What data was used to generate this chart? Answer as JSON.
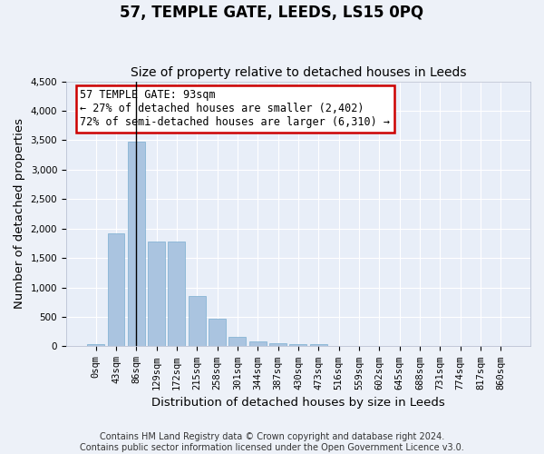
{
  "title": "57, TEMPLE GATE, LEEDS, LS15 0PQ",
  "subtitle": "Size of property relative to detached houses in Leeds",
  "xlabel": "Distribution of detached houses by size in Leeds",
  "ylabel": "Number of detached properties",
  "bin_labels": [
    "0sqm",
    "43sqm",
    "86sqm",
    "129sqm",
    "172sqm",
    "215sqm",
    "258sqm",
    "301sqm",
    "344sqm",
    "387sqm",
    "430sqm",
    "473sqm",
    "516sqm",
    "559sqm",
    "602sqm",
    "645sqm",
    "688sqm",
    "731sqm",
    "774sqm",
    "817sqm",
    "860sqm"
  ],
  "bar_values": [
    40,
    1920,
    3480,
    1780,
    1780,
    860,
    465,
    160,
    90,
    50,
    45,
    40,
    0,
    0,
    0,
    0,
    0,
    0,
    0,
    0,
    0
  ],
  "bar_color": "#aac4e0",
  "bar_edge_color": "#7aaed0",
  "background_color": "#e8eef8",
  "grid_color": "#ffffff",
  "ylim": [
    0,
    4500
  ],
  "yticks": [
    0,
    500,
    1000,
    1500,
    2000,
    2500,
    3000,
    3500,
    4000,
    4500
  ],
  "property_line_x": 2,
  "annotation_title": "57 TEMPLE GATE: 93sqm",
  "annotation_line1": "← 27% of detached houses are smaller (2,402)",
  "annotation_line2": "72% of semi-detached houses are larger (6,310) →",
  "annotation_box_color": "#ffffff",
  "annotation_box_edge_color": "#cc0000",
  "footer_line1": "Contains HM Land Registry data © Crown copyright and database right 2024.",
  "footer_line2": "Contains public sector information licensed under the Open Government Licence v3.0.",
  "title_fontsize": 12,
  "subtitle_fontsize": 10,
  "axis_label_fontsize": 9.5,
  "tick_fontsize": 7.5,
  "annotation_fontsize": 8.5,
  "footer_fontsize": 7.0
}
